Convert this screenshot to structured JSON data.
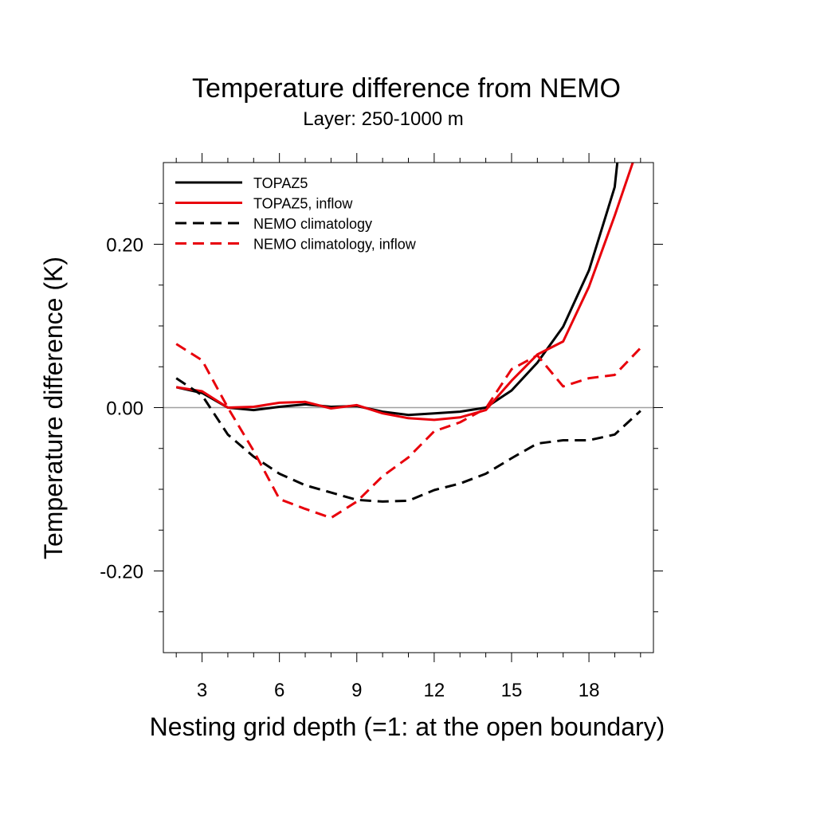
{
  "chart_data": {
    "type": "line",
    "title": "Temperature difference from NEMO",
    "subtitle": "Layer: 250-1000 m",
    "xlabel": "Nesting grid depth (=1: at the open boundary)",
    "ylabel": "Temperature difference (K)",
    "xlim": [
      1.5,
      20.5
    ],
    "ylim": [
      -0.3,
      0.3
    ],
    "x_ticks": [
      3,
      6,
      9,
      12,
      15,
      18
    ],
    "x_tick_labels": [
      "3",
      "6",
      "9",
      "12",
      "15",
      "18"
    ],
    "y_ticks": [
      -0.2,
      0.0,
      0.2
    ],
    "y_tick_labels": [
      "-0.20",
      "0.00",
      "0.20"
    ],
    "zero_line": true,
    "grid": false,
    "legend_position": "top-left",
    "series": [
      {
        "name": "TOPAZ5",
        "color": "#000000",
        "dash": "solid",
        "x": [
          2,
          3,
          4,
          5,
          6,
          7,
          8,
          9,
          10,
          11,
          12,
          13,
          14,
          15,
          16,
          17,
          18,
          19,
          19.1
        ],
        "y": [
          0.025,
          0.018,
          0.0,
          -0.003,
          0.001,
          0.004,
          0.001,
          0.002,
          -0.005,
          -0.009,
          -0.007,
          -0.005,
          0.0,
          0.021,
          0.055,
          0.099,
          0.168,
          0.27,
          0.3
        ]
      },
      {
        "name": "TOPAZ5, inflow",
        "color": "#e8000b",
        "dash": "solid",
        "x": [
          2,
          3,
          4,
          5,
          6,
          7,
          8,
          9,
          10,
          11,
          12,
          13,
          14,
          15,
          16,
          17,
          18,
          19,
          19.7
        ],
        "y": [
          0.025,
          0.02,
          0.0,
          0.001,
          0.006,
          0.007,
          -0.001,
          0.003,
          -0.007,
          -0.013,
          -0.015,
          -0.012,
          -0.003,
          0.033,
          0.065,
          0.081,
          0.148,
          0.235,
          0.3
        ]
      },
      {
        "name": "NEMO climatology",
        "color": "#000000",
        "dash": "dashed",
        "x": [
          2,
          3,
          4,
          5,
          6,
          7,
          8,
          9,
          10,
          11,
          12,
          13,
          14,
          15,
          16,
          17,
          18,
          19,
          20
        ],
        "y": [
          0.036,
          0.015,
          -0.033,
          -0.06,
          -0.081,
          -0.095,
          -0.104,
          -0.113,
          -0.115,
          -0.114,
          -0.101,
          -0.093,
          -0.081,
          -0.062,
          -0.044,
          -0.04,
          -0.04,
          -0.033,
          -0.004
        ]
      },
      {
        "name": "NEMO climatology, inflow",
        "color": "#e8000b",
        "dash": "dashed",
        "x": [
          2,
          3,
          4,
          5,
          6,
          7,
          8,
          9,
          10,
          11,
          12,
          13,
          14,
          15,
          16,
          17,
          18,
          19,
          20
        ],
        "y": [
          0.078,
          0.058,
          0.0,
          -0.053,
          -0.112,
          -0.124,
          -0.135,
          -0.115,
          -0.084,
          -0.061,
          -0.029,
          -0.018,
          -0.001,
          0.047,
          0.064,
          0.026,
          0.036,
          0.04,
          0.073
        ]
      }
    ]
  }
}
